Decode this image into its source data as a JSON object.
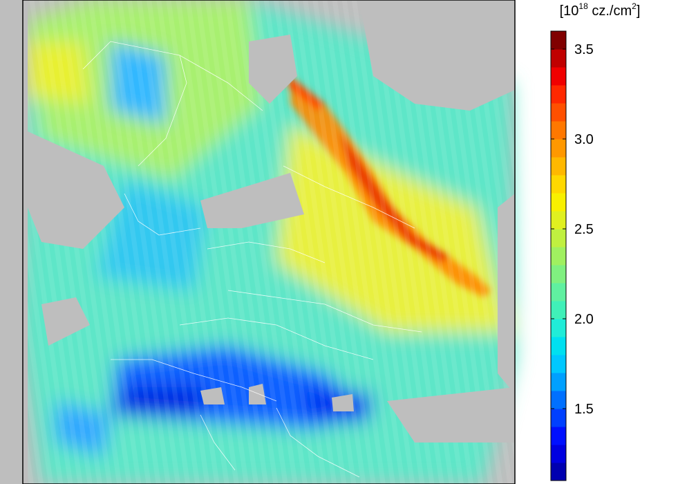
{
  "colorbar": {
    "unit_parts": [
      "[10",
      "18",
      " cz./cm",
      "2",
      "]"
    ],
    "lim": [
      1.1,
      3.6
    ],
    "ticks": [
      {
        "value": 1.5,
        "label": "1.5"
      },
      {
        "value": 2.0,
        "label": "2.0"
      },
      {
        "value": 2.5,
        "label": "2.5"
      },
      {
        "value": 3.0,
        "label": "3.0"
      },
      {
        "value": 3.5,
        "label": "3.5"
      }
    ],
    "colors": [
      "#0000b0",
      "#0000e0",
      "#0010ff",
      "#0040ff",
      "#0070ff",
      "#00a0ff",
      "#00c8ff",
      "#00e0f0",
      "#20ecd8",
      "#40f0b8",
      "#60f0a0",
      "#80f080",
      "#a0f060",
      "#c0f040",
      "#e0f020",
      "#f8f000",
      "#ffd800",
      "#ffb800",
      "#ff9800",
      "#ff7800",
      "#ff5000",
      "#ff2800",
      "#f00000",
      "#c00000",
      "#800000"
    ]
  }
}
